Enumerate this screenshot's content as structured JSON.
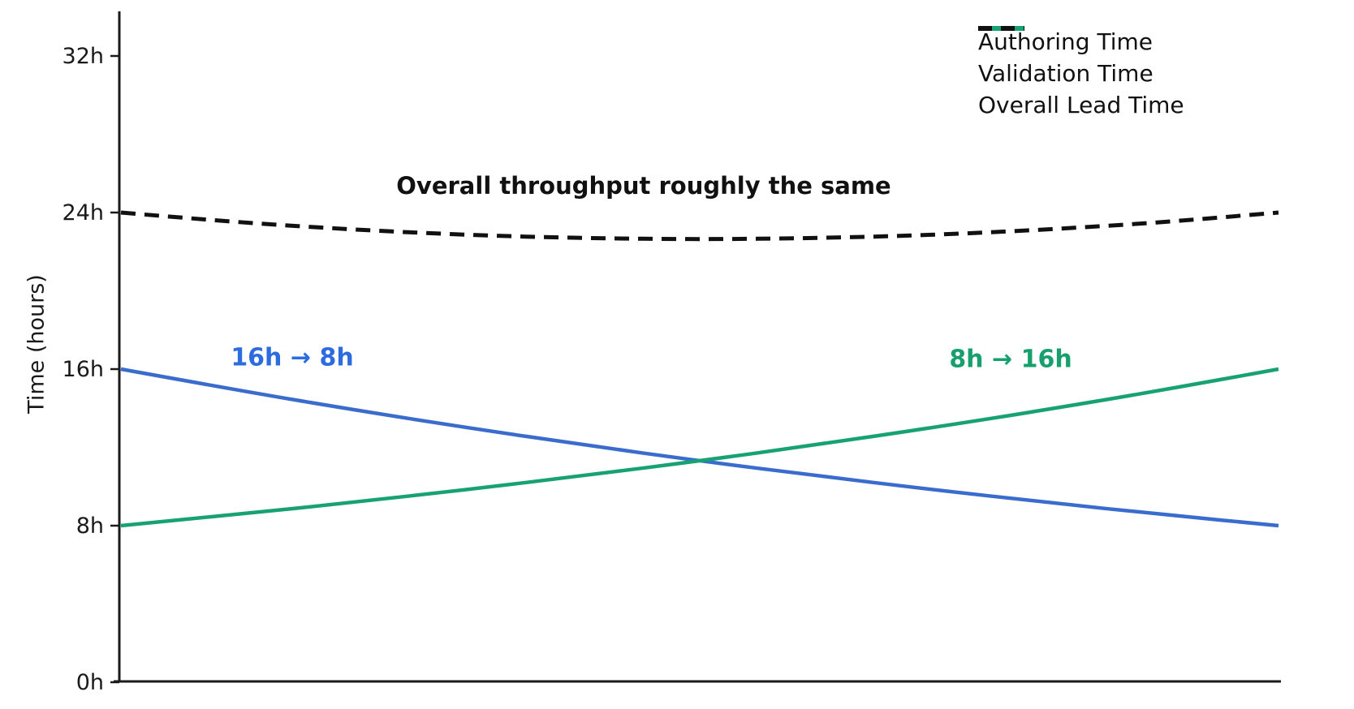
{
  "figure": {
    "background": "#ffffff",
    "axis_color": "#1a1a1a",
    "annotations": {
      "throughput": {
        "text": "Overall throughput roughly the same",
        "color": "#111111"
      },
      "authoring_change": {
        "text": "16h → 8h",
        "color": "#2d6cdf"
      },
      "validation_change": {
        "text": "8h → 16h",
        "color": "#17a06e"
      }
    }
  },
  "chart_data": {
    "type": "line",
    "title": "",
    "xlabel": "",
    "ylabel": "Time (hours)",
    "ylim": [
      0,
      34.3
    ],
    "xlim": [
      0,
      1
    ],
    "grid": false,
    "xticks": [],
    "yticks": {
      "values": [
        0,
        8,
        16,
        24,
        32
      ],
      "labels": [
        "0h",
        "8h",
        "16h",
        "24h",
        "32h"
      ]
    },
    "legend": {
      "position": "upper right",
      "frame": false
    },
    "x": [
      0,
      0.1,
      0.2,
      0.3,
      0.4,
      0.5,
      0.6,
      0.7,
      0.8,
      0.9,
      1.0
    ],
    "series": [
      {
        "name": "Authoring Time",
        "color": "#3a6ccd",
        "style": "solid",
        "values": [
          16.0,
          14.93,
          13.93,
          13.0,
          12.13,
          11.31,
          10.56,
          9.85,
          9.19,
          8.57,
          8.0
        ]
      },
      {
        "name": "Validation Time",
        "color": "#18a274",
        "style": "solid",
        "values": [
          8.0,
          8.57,
          9.19,
          9.85,
          10.56,
          11.31,
          12.13,
          13.0,
          13.93,
          14.93,
          16.0
        ]
      },
      {
        "name": "Overall Lead Time",
        "color": "#111111",
        "style": "dashed",
        "values": [
          24.0,
          23.5,
          23.13,
          22.85,
          22.69,
          22.63,
          22.69,
          22.85,
          23.13,
          23.5,
          24.0
        ]
      }
    ]
  }
}
